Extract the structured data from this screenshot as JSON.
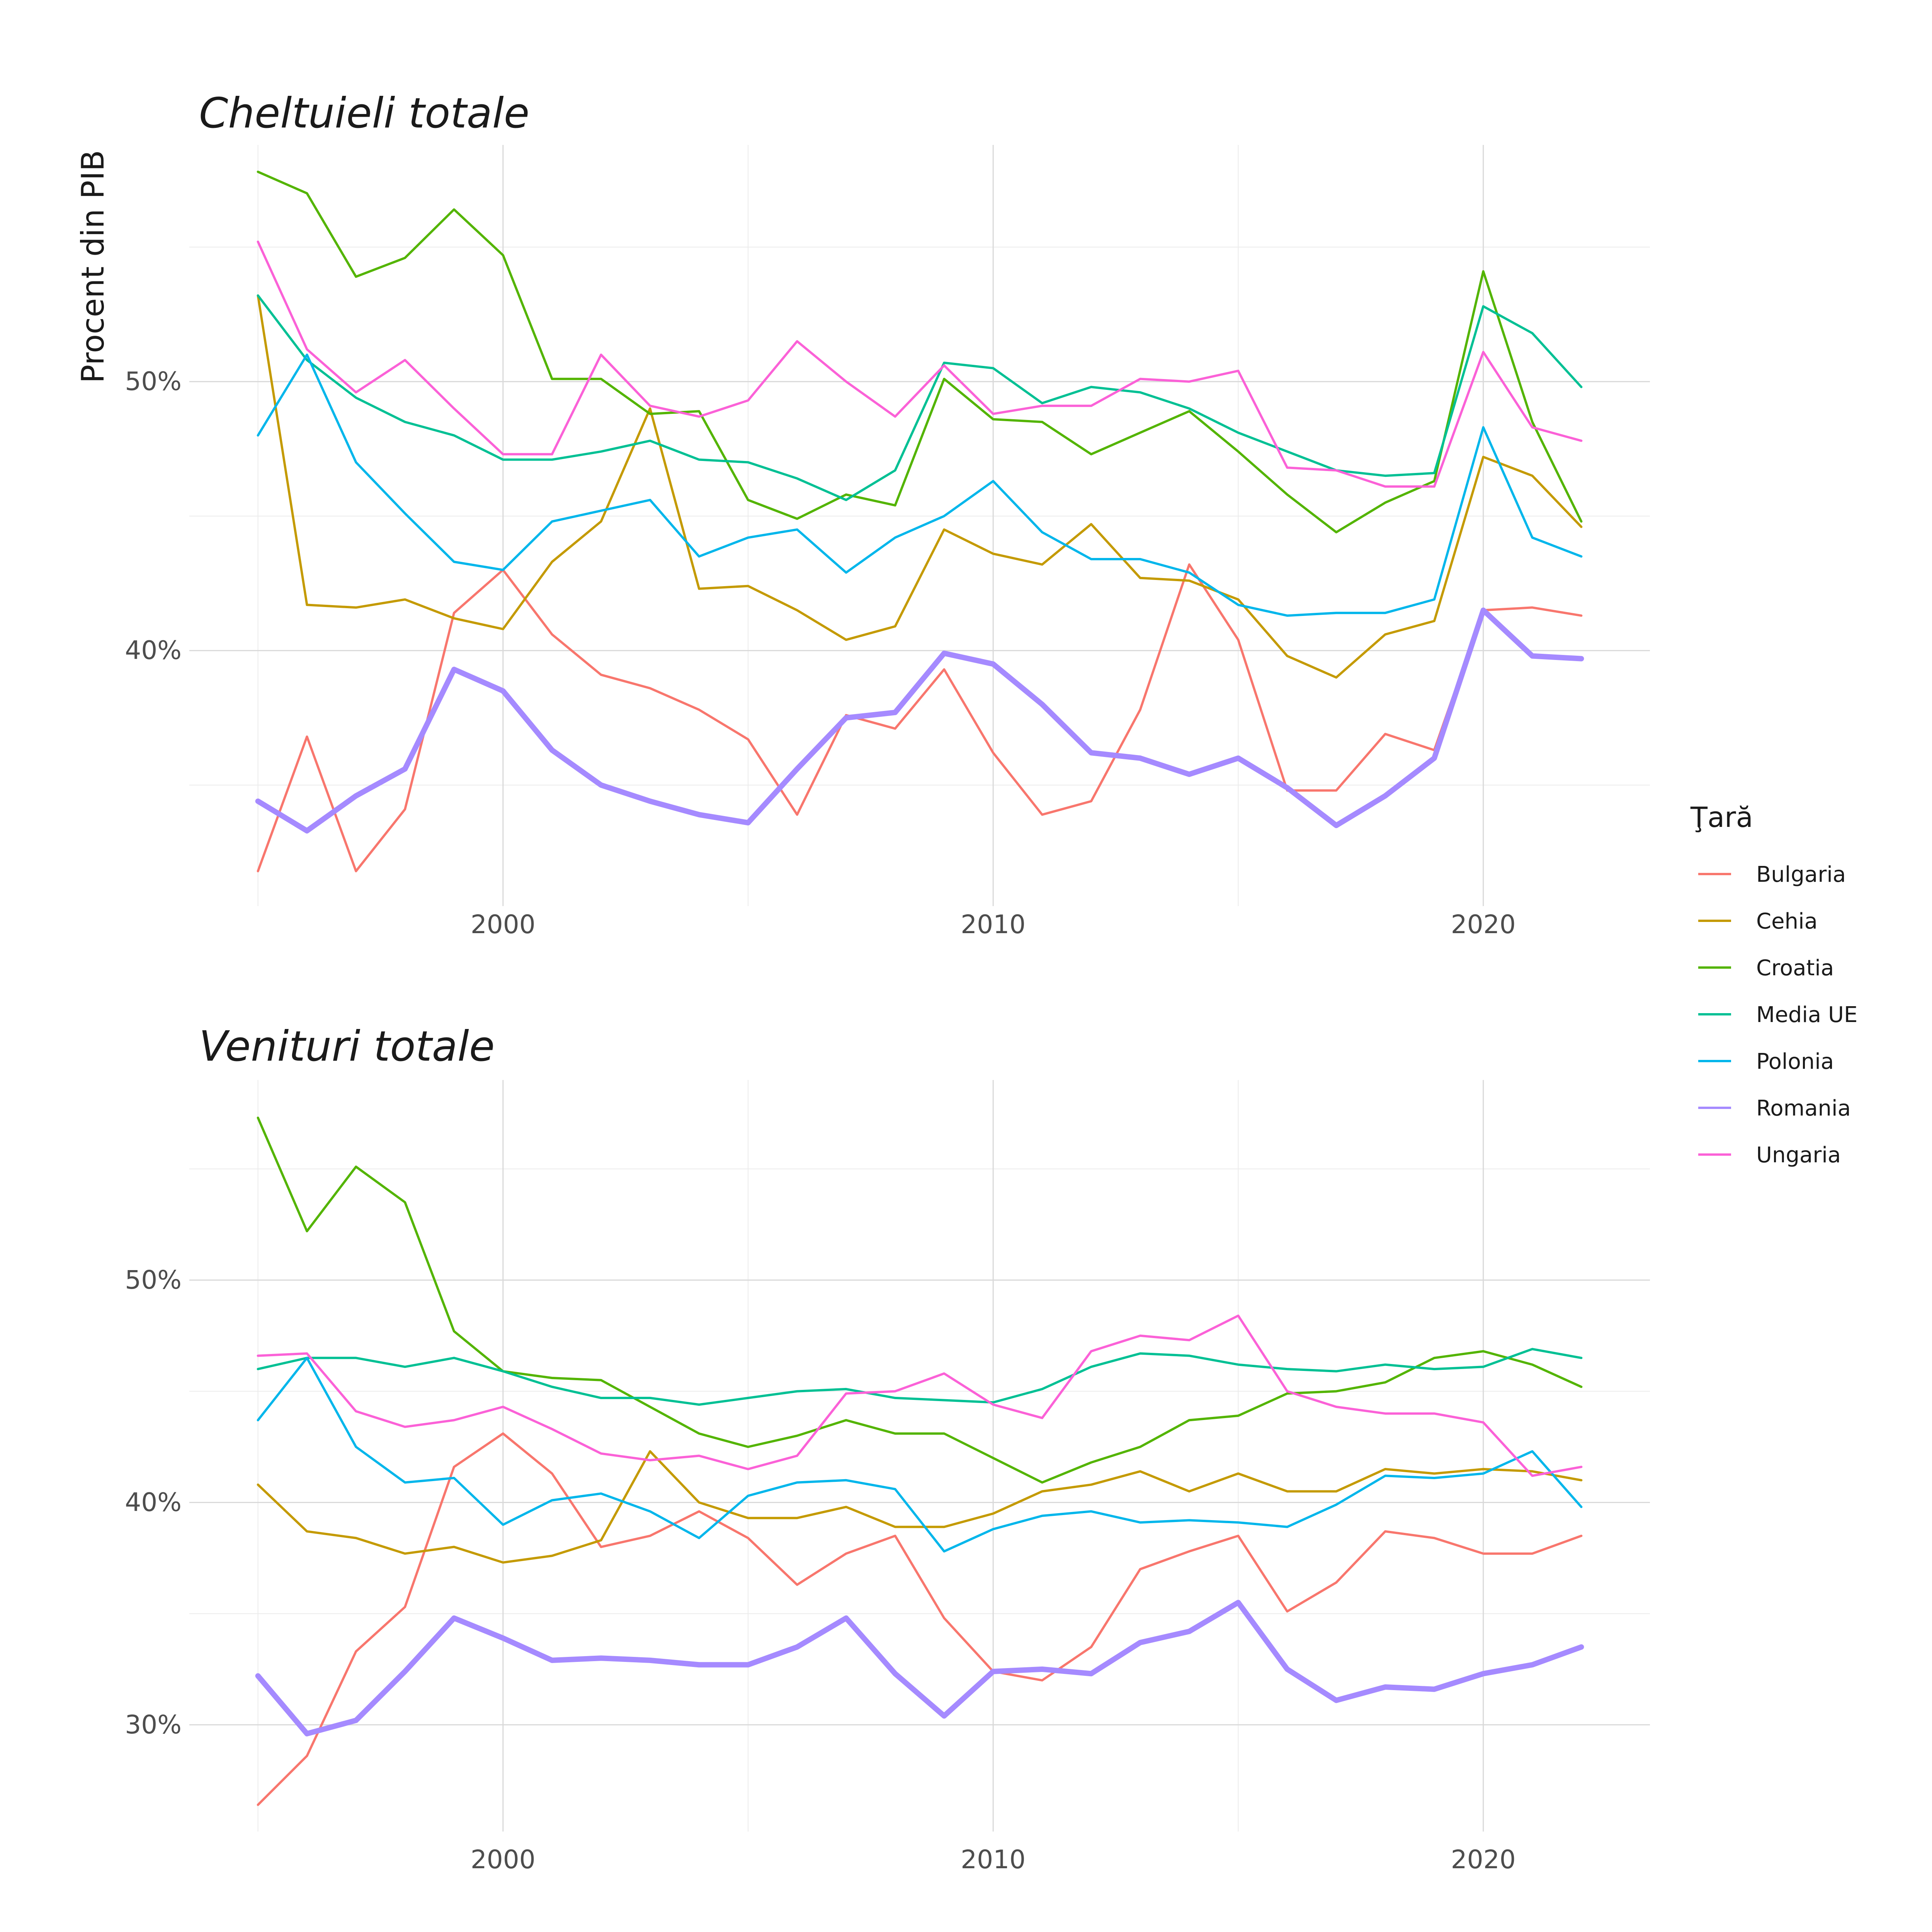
{
  "colors": {
    "Bulgaria": "#F8766D",
    "Cehia": "#C49A00",
    "Croatia": "#53B400",
    "Media UE": "#00C094",
    "Polonia": "#00B6EB",
    "Romania": "#A58AFF",
    "Ungaria": "#FB61D7"
  },
  "legend": {
    "title": "Ţară",
    "items": [
      "Bulgaria",
      "Cehia",
      "Croatia",
      "Media UE",
      "Polonia",
      "Romania",
      "Ungaria"
    ]
  },
  "chart_data": [
    {
      "type": "line",
      "title": "Cheltuieli totale",
      "ylabel": "Procent din PIB",
      "xlabel": "",
      "xlim": [
        1993.6,
        2023.4
      ],
      "ylim": [
        30.5,
        58.8
      ],
      "xticks": [
        2000,
        2010,
        2020
      ],
      "xtick_labels": [
        "2000",
        "2010",
        "2020"
      ],
      "yticks": [
        40,
        50
      ],
      "ytick_labels": [
        "40%",
        "50%"
      ],
      "grid": true,
      "highlight": "Romania",
      "x": [
        1995,
        1996,
        1997,
        1998,
        1999,
        2000,
        2001,
        2002,
        2003,
        2004,
        2005,
        2006,
        2007,
        2008,
        2009,
        2010,
        2011,
        2012,
        2013,
        2014,
        2015,
        2016,
        2017,
        2018,
        2019,
        2020,
        2021,
        2022
      ],
      "series": [
        {
          "name": "Bulgaria",
          "values": [
            31.8,
            36.8,
            31.8,
            34.1,
            41.4,
            43.0,
            40.6,
            39.1,
            38.6,
            37.8,
            36.7,
            33.9,
            37.6,
            37.1,
            39.3,
            36.2,
            33.9,
            34.4,
            37.8,
            43.2,
            40.4,
            34.8,
            34.8,
            36.9,
            36.3,
            41.5,
            41.6,
            41.3
          ]
        },
        {
          "name": "Cehia",
          "values": [
            53.2,
            41.7,
            41.6,
            41.9,
            41.2,
            40.8,
            43.3,
            44.8,
            49.0,
            42.3,
            42.4,
            41.5,
            40.4,
            40.9,
            44.5,
            43.6,
            43.2,
            44.7,
            42.7,
            42.6,
            41.9,
            39.8,
            39.0,
            40.6,
            41.1,
            47.2,
            46.5,
            44.6
          ]
        },
        {
          "name": "Croatia",
          "values": [
            57.8,
            57.0,
            53.9,
            54.6,
            56.4,
            54.7,
            50.1,
            50.1,
            48.8,
            48.9,
            45.6,
            44.9,
            45.8,
            45.4,
            50.1,
            48.6,
            48.5,
            47.3,
            48.1,
            48.9,
            47.4,
            45.8,
            44.4,
            45.5,
            46.3,
            54.1,
            48.5,
            44.8
          ]
        },
        {
          "name": "Media UE",
          "values": [
            53.2,
            50.8,
            49.4,
            48.5,
            48.0,
            47.1,
            47.1,
            47.4,
            47.8,
            47.1,
            47.0,
            46.4,
            45.6,
            46.7,
            50.7,
            50.5,
            49.2,
            49.8,
            49.6,
            49.0,
            48.1,
            47.4,
            46.7,
            46.5,
            46.6,
            52.8,
            51.8,
            49.8
          ]
        },
        {
          "name": "Polonia",
          "values": [
            48.0,
            51.0,
            47.0,
            45.1,
            43.3,
            43.0,
            44.8,
            45.2,
            45.6,
            43.5,
            44.2,
            44.5,
            42.9,
            44.2,
            45.0,
            46.3,
            44.4,
            43.4,
            43.4,
            42.9,
            41.7,
            41.3,
            41.4,
            41.4,
            41.9,
            48.3,
            44.2,
            43.5
          ]
        },
        {
          "name": "Romania",
          "values": [
            34.4,
            33.3,
            34.6,
            35.6,
            39.3,
            38.5,
            36.3,
            35.0,
            34.4,
            33.9,
            33.6,
            35.6,
            37.5,
            37.7,
            39.9,
            39.5,
            38.0,
            36.2,
            36.0,
            35.4,
            36.0,
            34.9,
            33.5,
            34.6,
            36.0,
            41.5,
            39.8,
            39.7
          ]
        },
        {
          "name": "Ungaria",
          "values": [
            55.2,
            51.2,
            49.6,
            50.8,
            49.0,
            47.3,
            47.3,
            51.0,
            49.1,
            48.7,
            49.3,
            51.5,
            50.0,
            48.7,
            50.6,
            48.8,
            49.1,
            49.1,
            50.1,
            50.0,
            50.4,
            46.8,
            46.7,
            46.1,
            46.1,
            51.1,
            48.3,
            47.8
          ]
        }
      ]
    },
    {
      "type": "line",
      "title": "Venituri totale",
      "ylabel": "",
      "xlabel": "",
      "xlim": [
        1993.6,
        2023.4
      ],
      "ylim": [
        25.2,
        59.0
      ],
      "xticks": [
        2000,
        2010,
        2020
      ],
      "xtick_labels": [
        "2000",
        "2010",
        "2020"
      ],
      "yticks": [
        30,
        40,
        50
      ],
      "ytick_labels": [
        "30%",
        "40%",
        "50%"
      ],
      "grid": true,
      "highlight": "Romania",
      "x": [
        1995,
        1996,
        1997,
        1998,
        1999,
        2000,
        2001,
        2002,
        2003,
        2004,
        2005,
        2006,
        2007,
        2008,
        2009,
        2010,
        2011,
        2012,
        2013,
        2014,
        2015,
        2016,
        2017,
        2018,
        2019,
        2020,
        2021,
        2022
      ],
      "series": [
        {
          "name": "Bulgaria",
          "values": [
            26.4,
            28.6,
            33.3,
            35.3,
            41.6,
            43.1,
            41.3,
            38.0,
            38.5,
            39.6,
            38.4,
            36.3,
            37.7,
            38.5,
            34.8,
            32.4,
            32.0,
            33.5,
            37.0,
            37.8,
            38.5,
            35.1,
            36.4,
            38.7,
            38.4,
            37.7,
            37.7,
            38.5
          ]
        },
        {
          "name": "Cehia",
          "values": [
            40.8,
            38.7,
            38.4,
            37.7,
            38.0,
            37.3,
            37.6,
            38.3,
            42.3,
            40.0,
            39.3,
            39.3,
            39.8,
            38.9,
            38.9,
            39.5,
            40.5,
            40.8,
            41.4,
            40.5,
            41.3,
            40.5,
            40.5,
            41.5,
            41.3,
            41.5,
            41.4,
            41.0
          ]
        },
        {
          "name": "Croatia",
          "values": [
            57.3,
            52.2,
            55.1,
            53.5,
            47.7,
            45.9,
            45.6,
            45.5,
            44.3,
            43.1,
            42.5,
            43.0,
            43.7,
            43.1,
            43.1,
            42.0,
            40.9,
            41.8,
            42.5,
            43.7,
            43.9,
            44.9,
            45.0,
            45.4,
            46.5,
            46.8,
            46.2,
            45.2
          ]
        },
        {
          "name": "Media UE",
          "values": [
            46.0,
            46.5,
            46.5,
            46.1,
            46.5,
            45.9,
            45.2,
            44.7,
            44.7,
            44.4,
            44.7,
            45.0,
            45.1,
            44.7,
            44.6,
            44.5,
            45.1,
            46.1,
            46.7,
            46.6,
            46.2,
            46.0,
            45.9,
            46.2,
            46.0,
            46.1,
            46.9,
            46.5
          ]
        },
        {
          "name": "Polonia",
          "values": [
            43.7,
            46.5,
            42.5,
            40.9,
            41.1,
            39.0,
            40.1,
            40.4,
            39.6,
            38.4,
            40.3,
            40.9,
            41.0,
            40.6,
            37.8,
            38.8,
            39.4,
            39.6,
            39.1,
            39.2,
            39.1,
            38.9,
            39.9,
            41.2,
            41.1,
            41.3,
            42.3,
            39.8
          ]
        },
        {
          "name": "Romania",
          "values": [
            32.2,
            29.6,
            30.2,
            32.4,
            34.8,
            33.9,
            32.9,
            33.0,
            32.9,
            32.7,
            32.7,
            33.5,
            34.8,
            32.3,
            30.4,
            32.4,
            32.5,
            32.3,
            33.7,
            34.2,
            35.5,
            32.5,
            31.1,
            31.7,
            31.6,
            32.3,
            32.7,
            33.5
          ]
        },
        {
          "name": "Ungaria",
          "values": [
            46.6,
            46.7,
            44.1,
            43.4,
            43.7,
            44.3,
            43.3,
            42.2,
            41.9,
            42.1,
            41.5,
            42.1,
            44.9,
            45.0,
            45.8,
            44.4,
            43.8,
            46.8,
            47.5,
            47.3,
            48.4,
            45.0,
            44.3,
            44.0,
            44.0,
            43.6,
            41.2,
            41.6
          ]
        }
      ]
    }
  ]
}
